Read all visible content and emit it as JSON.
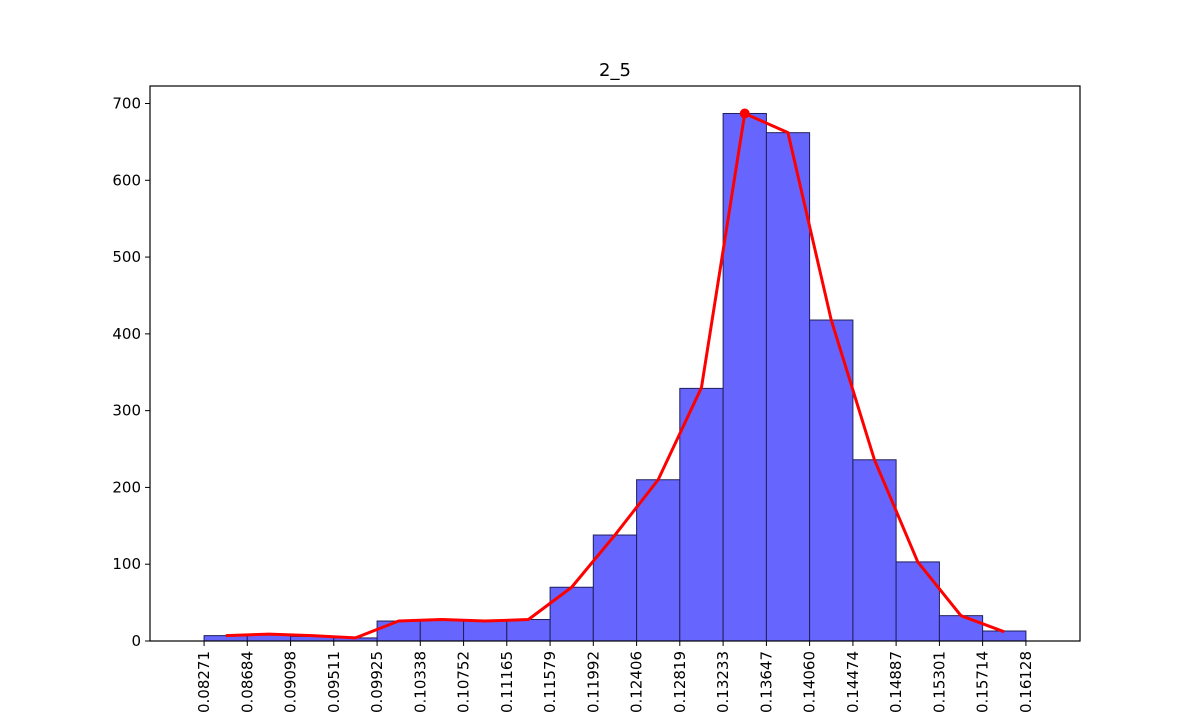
{
  "chart_data": {
    "type": "bar",
    "title": "2_5",
    "xlabel": "",
    "ylabel": "",
    "x_tick_labels": [
      "0.08271",
      "0.08684",
      "0.09098",
      "0.09511",
      "0.09925",
      "0.10338",
      "0.10752",
      "0.11165",
      "0.11579",
      "0.11992",
      "0.12406",
      "0.12819",
      "0.13233",
      "0.13647",
      "0.14060",
      "0.14474",
      "0.14887",
      "0.15301",
      "0.15714",
      "0.16128"
    ],
    "y_ticks": [
      0,
      100,
      200,
      300,
      400,
      500,
      600,
      700
    ],
    "xlim": [
      0.07754,
      0.16645
    ],
    "ylim": [
      0,
      700
    ],
    "bins": {
      "edges": [
        0.08271,
        0.08684,
        0.09098,
        0.09511,
        0.09925,
        0.10338,
        0.10752,
        0.11165,
        0.11579,
        0.11992,
        0.12406,
        0.12819,
        0.13233,
        0.13647,
        0.1406,
        0.14474,
        0.14887,
        0.15301,
        0.15714,
        0.16128
      ],
      "counts": [
        7,
        8,
        6,
        4,
        26,
        27,
        26,
        28,
        70,
        138,
        210,
        329,
        687,
        662,
        418,
        236,
        103,
        33,
        13
      ]
    },
    "curve": {
      "x": [
        0.08478,
        0.08891,
        0.09304,
        0.09718,
        0.10131,
        0.10545,
        0.10958,
        0.11372,
        0.11785,
        0.12199,
        0.12612,
        0.13026,
        0.1344,
        0.13853,
        0.14267,
        0.1468,
        0.15094,
        0.15507,
        0.15921
      ],
      "y": [
        7,
        9,
        7,
        4,
        26,
        28,
        26,
        28,
        70,
        138,
        210,
        330,
        687,
        662,
        418,
        236,
        103,
        33,
        12
      ]
    },
    "peak": {
      "x": 0.1344,
      "y": 687
    },
    "colors": {
      "bar_fill": "#6666ff",
      "bar_edge": "#1f1f5a",
      "curve": "#ff0000",
      "peak_marker": "#ff0000"
    },
    "grid": false,
    "legend": "none"
  }
}
